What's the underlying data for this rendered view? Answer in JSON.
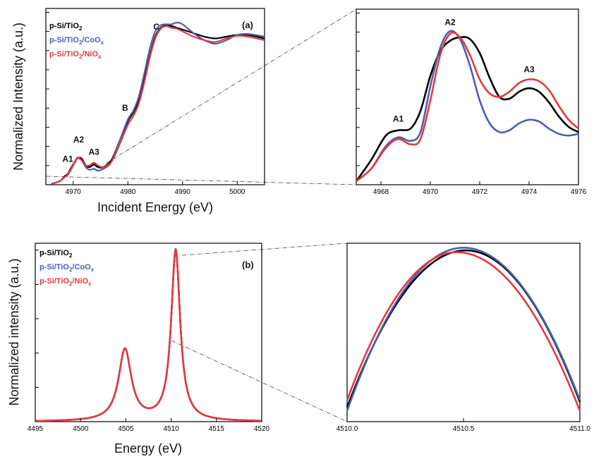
{
  "colors": {
    "black": "#000000",
    "blue": "#4a5fb0",
    "red": "#e23a40"
  },
  "chart_data": [
    {
      "id": "a-main",
      "type": "line",
      "panel_label": "(a)",
      "xlabel": "Incident Energy (eV)",
      "ylabel": "Normalized Intensity (a.u.)",
      "xlim": [
        4965,
        5005
      ],
      "ylim": [
        0,
        1.0
      ],
      "xticks": [
        4970,
        4980,
        4990,
        5000
      ],
      "yticks_count": 9,
      "legend": [
        {
          "base": "p-Si/TiO",
          "sub": "2",
          "rest": "",
          "rest_sub": "",
          "color": "#000000"
        },
        {
          "base": "p-Si/TiO",
          "sub": "2",
          "rest": "/CoO",
          "rest_sub": "x",
          "color": "#4a5fb0"
        },
        {
          "base": "p-Si/TiO",
          "sub": "2",
          "rest": "/NiO",
          "rest_sub": "x",
          "color": "#e23a40"
        }
      ],
      "legend_position": "top-left",
      "annotations": [
        {
          "text": "A1",
          "x": 4969.0,
          "y": 0.13
        },
        {
          "text": "A2",
          "x": 4971.0,
          "y": 0.24
        },
        {
          "text": "A3",
          "x": 4973.8,
          "y": 0.17
        },
        {
          "text": "B",
          "x": 4979.5,
          "y": 0.42
        },
        {
          "text": "C",
          "x": 4985.2,
          "y": 0.88
        }
      ],
      "series": [
        {
          "name": "p-Si/TiO2",
          "color": "#000000",
          "x": [
            4966,
            4967.5,
            4968.5,
            4969,
            4969.5,
            4970.3,
            4970.8,
            4971.5,
            4972.3,
            4973,
            4973.8,
            4974.5,
            4975.5,
            4977,
            4978.5,
            4980,
            4981,
            4982,
            4983,
            4984,
            4985,
            4986,
            4987,
            4988,
            4989,
            4990,
            4992,
            4994,
            4996,
            4998,
            5000,
            5002,
            5005
          ],
          "y": [
            0.005,
            0.02,
            0.05,
            0.06,
            0.09,
            0.13,
            0.15,
            0.15,
            0.11,
            0.1,
            0.115,
            0.1,
            0.1,
            0.14,
            0.25,
            0.36,
            0.41,
            0.48,
            0.6,
            0.73,
            0.84,
            0.89,
            0.905,
            0.9,
            0.89,
            0.88,
            0.86,
            0.84,
            0.83,
            0.84,
            0.85,
            0.85,
            0.83
          ]
        },
        {
          "name": "p-Si/TiO2/CoOx",
          "color": "#4a5fb0",
          "x": [
            4966,
            4967.5,
            4968.5,
            4969,
            4969.5,
            4970.3,
            4970.8,
            4971.5,
            4972.3,
            4973,
            4973.8,
            4974.5,
            4975.5,
            4977,
            4978.5,
            4980,
            4981,
            4982,
            4983,
            4984,
            4985,
            4986,
            4987,
            4988,
            4989,
            4990,
            4992,
            4994,
            4996,
            4998,
            5000,
            5002,
            5005
          ],
          "y": [
            0.005,
            0.02,
            0.045,
            0.055,
            0.085,
            0.13,
            0.155,
            0.14,
            0.1,
            0.085,
            0.09,
            0.08,
            0.09,
            0.13,
            0.25,
            0.37,
            0.42,
            0.5,
            0.63,
            0.77,
            0.87,
            0.905,
            0.91,
            0.91,
            0.92,
            0.91,
            0.86,
            0.82,
            0.8,
            0.82,
            0.85,
            0.855,
            0.84
          ]
        },
        {
          "name": "p-Si/TiO2/NiOx",
          "color": "#e23a40",
          "x": [
            4966,
            4967.5,
            4968.5,
            4969,
            4969.5,
            4970.3,
            4970.8,
            4971.5,
            4972.3,
            4973,
            4973.8,
            4974.5,
            4975.5,
            4977,
            4978.5,
            4980,
            4981,
            4982,
            4983,
            4984,
            4985,
            4986,
            4987,
            4988,
            4989,
            4990,
            4992,
            4994,
            4996,
            4998,
            5000,
            5002,
            5005
          ],
          "y": [
            0.005,
            0.02,
            0.045,
            0.055,
            0.08,
            0.125,
            0.15,
            0.14,
            0.11,
            0.11,
            0.125,
            0.11,
            0.1,
            0.13,
            0.23,
            0.34,
            0.39,
            0.46,
            0.58,
            0.72,
            0.83,
            0.885,
            0.9,
            0.89,
            0.885,
            0.87,
            0.84,
            0.82,
            0.81,
            0.83,
            0.845,
            0.84,
            0.82
          ]
        }
      ]
    },
    {
      "id": "a-zoom",
      "type": "line",
      "xlim": [
        4967,
        4976
      ],
      "ylim": [
        0,
        1.0
      ],
      "xticks": [
        4968,
        4970,
        4972,
        4974,
        4976
      ],
      "yticks_count": 9,
      "annotations": [
        {
          "text": "A1",
          "x": 4968.7,
          "y": 0.36
        },
        {
          "text": "A2",
          "x": 4970.8,
          "y": 0.91
        },
        {
          "text": "A3",
          "x": 4974.0,
          "y": 0.64
        }
      ],
      "series": [
        {
          "name": "p-Si/TiO2",
          "color": "#000000",
          "x": [
            4967,
            4967.6,
            4968.2,
            4968.7,
            4969.2,
            4969.6,
            4970.0,
            4970.4,
            4970.8,
            4971.2,
            4971.6,
            4972.0,
            4972.4,
            4972.8,
            4973.2,
            4973.6,
            4974.0,
            4974.4,
            4974.8,
            4975.2,
            4975.6,
            4976
          ],
          "y": [
            0.02,
            0.14,
            0.28,
            0.31,
            0.32,
            0.42,
            0.62,
            0.76,
            0.82,
            0.84,
            0.83,
            0.75,
            0.61,
            0.5,
            0.49,
            0.53,
            0.55,
            0.53,
            0.47,
            0.39,
            0.33,
            0.3
          ]
        },
        {
          "name": "p-Si/TiO2/CoOx",
          "color": "#4a5fb0",
          "x": [
            4967,
            4967.6,
            4968.2,
            4968.7,
            4969.2,
            4969.6,
            4970.0,
            4970.4,
            4970.8,
            4971.2,
            4971.6,
            4972.0,
            4972.4,
            4972.8,
            4973.2,
            4973.6,
            4974.0,
            4974.4,
            4974.8,
            4975.2,
            4975.6,
            4976
          ],
          "y": [
            0.02,
            0.09,
            0.22,
            0.27,
            0.25,
            0.3,
            0.56,
            0.78,
            0.875,
            0.83,
            0.68,
            0.48,
            0.35,
            0.3,
            0.31,
            0.35,
            0.37,
            0.36,
            0.32,
            0.29,
            0.28,
            0.29
          ]
        },
        {
          "name": "p-Si/TiO2/NiOx",
          "color": "#e23a40",
          "x": [
            4967,
            4967.6,
            4968.2,
            4968.7,
            4969.2,
            4969.6,
            4970.0,
            4970.4,
            4970.8,
            4971.2,
            4971.6,
            4972.0,
            4972.4,
            4972.8,
            4973.2,
            4973.6,
            4974.0,
            4974.4,
            4974.8,
            4975.2,
            4975.6,
            4976
          ],
          "y": [
            0.02,
            0.09,
            0.21,
            0.26,
            0.23,
            0.26,
            0.48,
            0.74,
            0.86,
            0.84,
            0.74,
            0.6,
            0.52,
            0.5,
            0.53,
            0.58,
            0.6,
            0.59,
            0.54,
            0.45,
            0.37,
            0.32
          ]
        }
      ]
    },
    {
      "id": "b-main",
      "type": "line",
      "panel_label": "(b)",
      "xlabel": "Energy (eV)",
      "ylabel": "Normalized intensity (a.u.)",
      "xlim": [
        4495,
        4520
      ],
      "ylim": [
        0,
        1.0
      ],
      "xticks": [
        4495,
        4500,
        4505,
        4510,
        4515,
        4520
      ],
      "yticks_count": 5,
      "legend": [
        {
          "base": "p-Si/TiO",
          "sub": "2",
          "rest": "",
          "rest_sub": "",
          "color": "#000000"
        },
        {
          "base": "p-Si/TiO",
          "sub": "2",
          "rest": "/CoO",
          "rest_sub": "x",
          "color": "#4a5fb0"
        },
        {
          "base": "p-Si/TiO",
          "sub": "2",
          "rest": "/NiO",
          "rest_sub": "x",
          "color": "#e23a40"
        }
      ],
      "legend_position": "top-left",
      "peaks": [
        {
          "center": 4504.9,
          "height": 0.4,
          "width": 0.85
        },
        {
          "center": 4510.5,
          "height": 0.955,
          "width": 0.6
        }
      ],
      "series": [
        {
          "name": "p-Si/TiO2",
          "color": "#000000"
        },
        {
          "name": "p-Si/TiO2/CoOx",
          "color": "#4a5fb0"
        },
        {
          "name": "p-Si/TiO2/NiOx",
          "color": "#e23a40"
        }
      ]
    },
    {
      "id": "b-zoom",
      "type": "line",
      "xlim": [
        4510.0,
        4511.0
      ],
      "ylim": [
        0,
        1.0
      ],
      "xticks": [
        "4510.0",
        "4510.5",
        "4511.0"
      ],
      "series": [
        {
          "name": "p-Si/TiO2",
          "color": "#000000",
          "center": 4510.51,
          "height": 0.96,
          "left": 0.08,
          "right": 0.11
        },
        {
          "name": "p-Si/TiO2/CoOx",
          "color": "#4a5fb0",
          "center": 4510.5,
          "height": 0.975,
          "left": 0.06,
          "right": 0.12
        },
        {
          "name": "p-Si/TiO2/NiOx",
          "color": "#e23a40",
          "center": 4510.47,
          "height": 0.95,
          "left": 0.12,
          "right": 0.06
        }
      ]
    }
  ]
}
